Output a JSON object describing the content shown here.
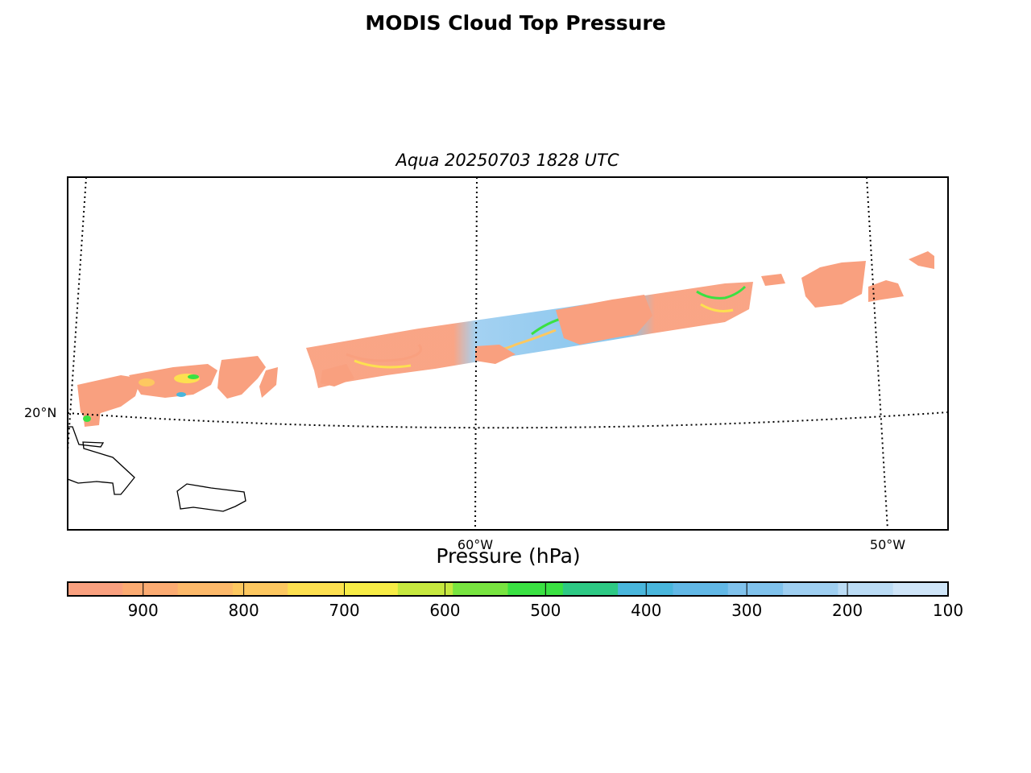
{
  "title": "MODIS Cloud Top Pressure",
  "subtitle": "Aqua 20250703 1828 UTC",
  "map": {
    "latitude_labels": [
      "20°N"
    ],
    "longitude_labels": [
      "60°W",
      "50°W"
    ],
    "gridlines": "dotted",
    "coastlines": true,
    "swath_region": "tropical western North Atlantic, east of the Lesser Antilles"
  },
  "colorbar": {
    "label": "Pressure (hPa)",
    "ticks": [
      "900",
      "800",
      "700",
      "600",
      "500",
      "400",
      "300",
      "200",
      "100"
    ],
    "range": [
      975,
      100
    ],
    "colors": [
      "#f9a07f",
      "#fbab72",
      "#fcb96a",
      "#fdc860",
      "#fde050",
      "#f7ec46",
      "#c6e83f",
      "#78e440",
      "#3ae142",
      "#2dc984",
      "#49b6dc",
      "#62b8e6",
      "#80c2ec",
      "#9fcff1",
      "#bbdcf5",
      "#cfe5f8"
    ]
  }
}
